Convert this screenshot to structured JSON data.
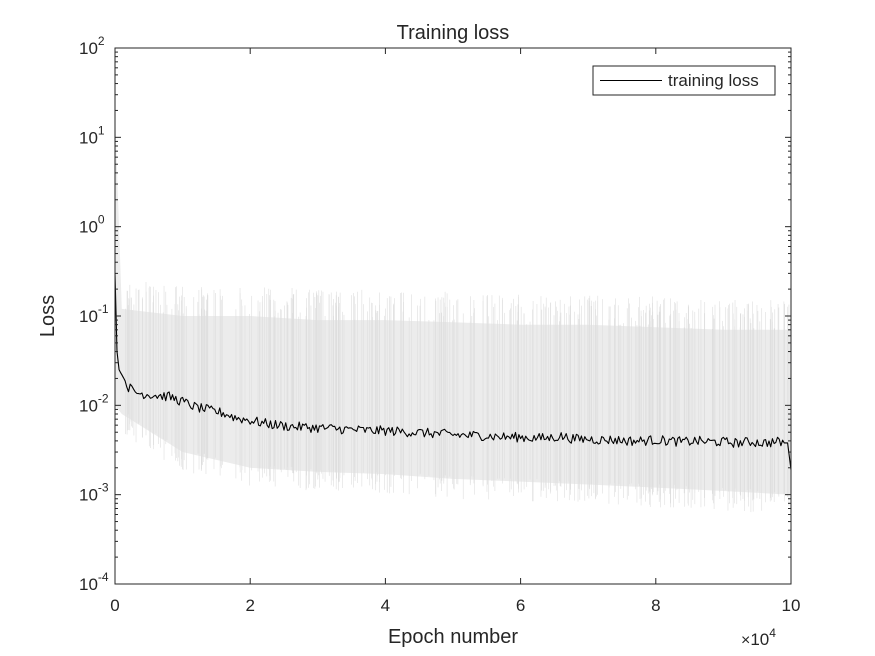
{
  "chart_data": {
    "type": "line",
    "title": "Training loss",
    "xlabel": "Epoch number",
    "ylabel": "Loss",
    "x_multiplier_base": "10",
    "x_multiplier_exp": "4",
    "xlim": [
      0,
      100000
    ],
    "ylim": [
      0.0001,
      100
    ],
    "yscale": "log",
    "grid": false,
    "legend_position": "top-right",
    "x_ticks": [
      {
        "value": 0,
        "label": "0"
      },
      {
        "value": 20000,
        "label": "2"
      },
      {
        "value": 40000,
        "label": "4"
      },
      {
        "value": 60000,
        "label": "6"
      },
      {
        "value": 80000,
        "label": "8"
      },
      {
        "value": 100000,
        "label": "10"
      }
    ],
    "y_ticks": [
      {
        "value": 0.0001,
        "base": "10",
        "exp": "-4"
      },
      {
        "value": 0.001,
        "base": "10",
        "exp": "-3"
      },
      {
        "value": 0.01,
        "base": "10",
        "exp": "-2"
      },
      {
        "value": 0.1,
        "base": "10",
        "exp": "-1"
      },
      {
        "value": 1,
        "base": "10",
        "exp": "0"
      },
      {
        "value": 10,
        "base": "10",
        "exp": "1"
      },
      {
        "value": 100,
        "base": "10",
        "exp": "2"
      }
    ],
    "series": [
      {
        "name": "training loss",
        "color": "#000000",
        "x": [
          0,
          300,
          600,
          1000,
          2000,
          3000,
          4000,
          6000,
          8000,
          10000,
          12000,
          14000,
          16000,
          18000,
          20000,
          22000,
          24000,
          26000,
          28000,
          30000,
          32000,
          34000,
          36000,
          38000,
          40000,
          42000,
          44000,
          46000,
          48000,
          50000,
          52000,
          54000,
          56000,
          58000,
          60000,
          62000,
          64000,
          66000,
          68000,
          70000,
          72000,
          74000,
          76000,
          78000,
          80000,
          82000,
          84000,
          86000,
          88000,
          90000,
          92000,
          94000,
          96000,
          98000,
          99500,
          100000
        ],
        "y": [
          0.3,
          0.04,
          0.025,
          0.022,
          0.016,
          0.014,
          0.0135,
          0.013,
          0.0125,
          0.011,
          0.0095,
          0.0088,
          0.0082,
          0.0072,
          0.0068,
          0.0063,
          0.006,
          0.0058,
          0.0057,
          0.0056,
          0.0055,
          0.0054,
          0.0053,
          0.0052,
          0.0052,
          0.0051,
          0.005,
          0.0049,
          0.0048,
          0.0047,
          0.0046,
          0.0046,
          0.0045,
          0.0044,
          0.0044,
          0.0043,
          0.0043,
          0.0045,
          0.0042,
          0.0042,
          0.0041,
          0.0041,
          0.004,
          0.004,
          0.0041,
          0.004,
          0.0039,
          0.004,
          0.0039,
          0.0039,
          0.0038,
          0.0039,
          0.0038,
          0.0039,
          0.0038,
          0.0019
        ]
      }
    ],
    "raw_band": {
      "color": "#ececec",
      "x": [
        0,
        1000,
        10000,
        20000,
        30000,
        40000,
        50000,
        60000,
        70000,
        80000,
        90000,
        100000
      ],
      "upper": [
        20,
        0.12,
        0.1,
        0.1,
        0.09,
        0.09,
        0.085,
        0.08,
        0.08,
        0.075,
        0.07,
        0.07
      ],
      "lower": [
        0.01,
        0.008,
        0.003,
        0.002,
        0.0018,
        0.0017,
        0.0015,
        0.0014,
        0.0013,
        0.0012,
        0.0011,
        0.001
      ]
    }
  }
}
